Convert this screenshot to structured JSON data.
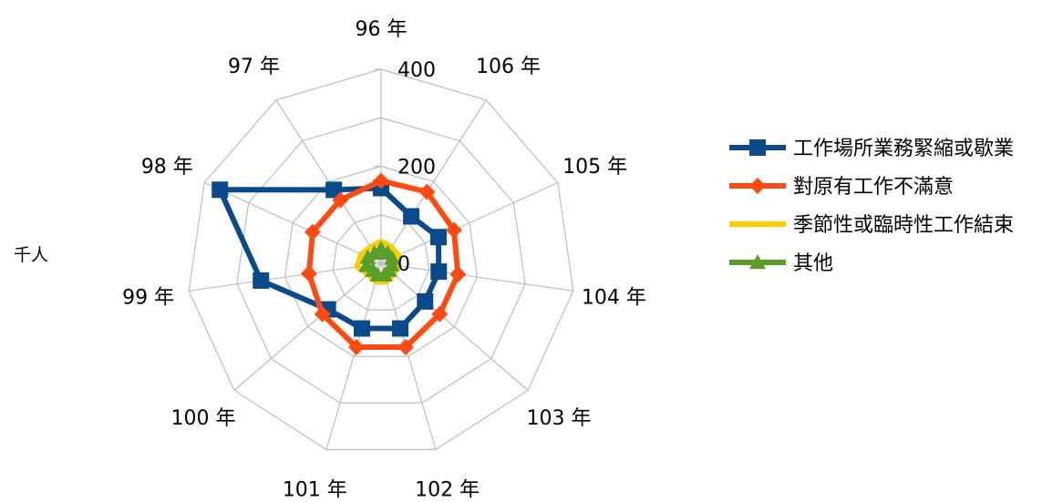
{
  "chart_data": {
    "type": "radar",
    "unit_label": "千人",
    "categories": [
      "96 年",
      "106 年",
      "105 年",
      "104 年",
      "103 年",
      "102 年",
      "101 年",
      "100 年",
      "99 年",
      "98 年",
      "97 年"
    ],
    "axis": {
      "min": 0,
      "max": 400,
      "ticks": [
        0,
        200,
        400
      ],
      "tick_labels": [
        "0",
        "200",
        "400"
      ],
      "grid": true
    },
    "legend_position": "right",
    "series": [
      {
        "name": "工作場所業務緊縮或歇業",
        "color": "#0a4a8a",
        "marker": "square",
        "values": [
          155,
          115,
          130,
          120,
          120,
          140,
          140,
          145,
          250,
          365,
          180
        ]
      },
      {
        "name": "對原有工作不滿意",
        "color": "#ff4a12",
        "marker": "diamond",
        "values": [
          170,
          175,
          165,
          160,
          160,
          180,
          180,
          160,
          150,
          155,
          155
        ]
      },
      {
        "name": "季節性或臨時性工作結束",
        "color": "#ffcc00",
        "marker": "none",
        "values": [
          45,
          40,
          40,
          35,
          35,
          40,
          40,
          35,
          50,
          45,
          40
        ]
      },
      {
        "name": "其他",
        "color": "#5a9e2a",
        "marker": "triangle",
        "values": [
          30,
          25,
          25,
          22,
          22,
          25,
          25,
          22,
          30,
          30,
          25
        ]
      }
    ]
  }
}
